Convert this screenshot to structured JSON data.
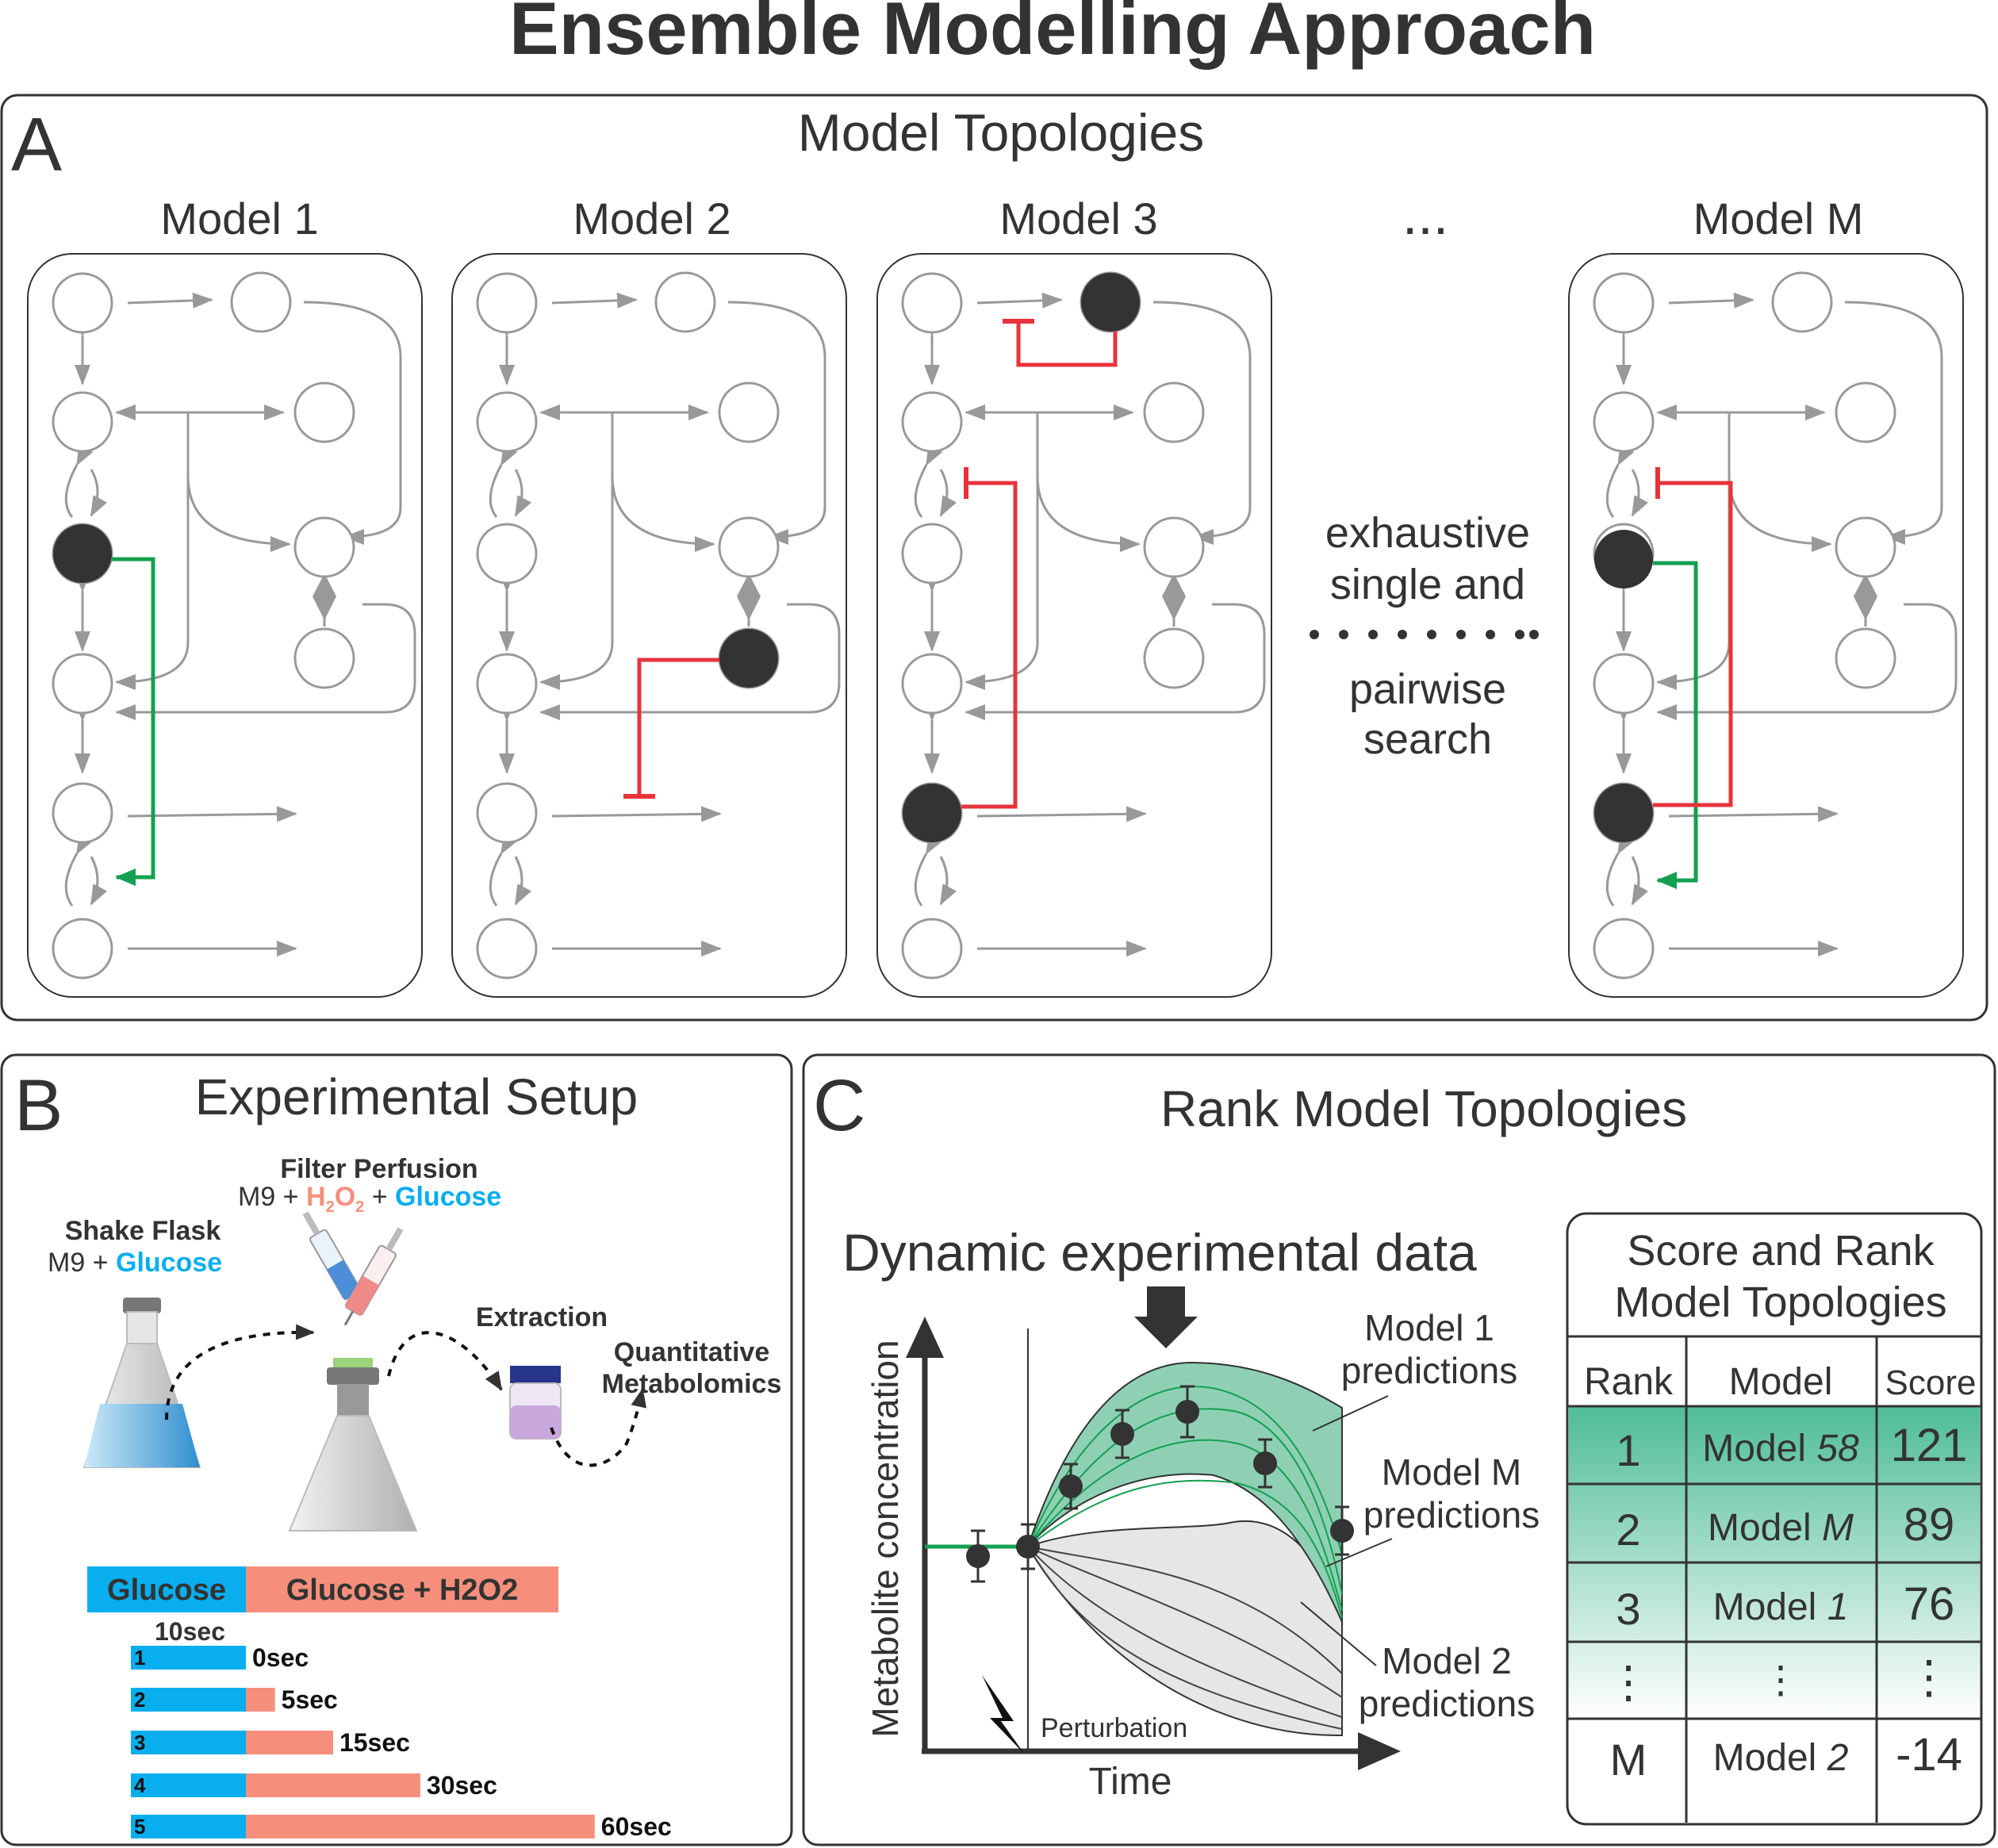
{
  "title": "Ensemble Modelling Approach",
  "colors": {
    "dark": "#333333",
    "grey": "#999999",
    "red": "#e8333b",
    "green": "#14a050",
    "blue": "#09aeee",
    "salmon": "#f58f7c",
    "teal": "#44b890"
  },
  "panelA": {
    "letter": "A",
    "heading": "Model Topologies",
    "models": [
      "Model 1",
      "Model 2",
      "Model 3",
      "Model M"
    ],
    "ellipsis": "...",
    "search_text": [
      "exhaustive",
      "single and",
      "pairwise",
      "search"
    ]
  },
  "panelB": {
    "letter": "B",
    "heading": "Experimental Setup",
    "filter_perfusion": "Filter Perfusion",
    "filter_media": {
      "m9": "M9 +",
      "h": "H",
      "sub2a": "2",
      "o": "O",
      "sub2b": "2",
      "plus": "+",
      "glucose": "Glucose"
    },
    "shake_flask": "Shake Flask",
    "shake_media": {
      "m9": "M9 +",
      "glucose": "Glucose"
    },
    "extraction": "Extraction",
    "quant1": "Quantitative",
    "quant2": "Metabolomics",
    "bar_glucose": "Glucose",
    "bar_glucose_h2o2": "Glucose + H2O2",
    "bar_10sec": "10sec",
    "timepoints": [
      {
        "id": "1",
        "label": "0sec",
        "seconds": 0
      },
      {
        "id": "2",
        "label": "5sec",
        "seconds": 5
      },
      {
        "id": "3",
        "label": "15sec",
        "seconds": 15
      },
      {
        "id": "4",
        "label": "30sec",
        "seconds": 30
      },
      {
        "id": "5",
        "label": "60sec",
        "seconds": 60
      }
    ]
  },
  "panelC": {
    "letter": "C",
    "heading": "Rank Model Topologies",
    "dyn_title": "Dynamic experimental data",
    "ylabel": "Metabolite concentration",
    "xlabel": "Time",
    "perturbation": "Perturbation",
    "pred1": [
      "Model 1",
      "predictions"
    ],
    "predM": [
      "Model M",
      "predictions"
    ],
    "pred2": [
      "Model 2",
      "predictions"
    ],
    "table_title": [
      "Score and Rank",
      "Model Topologies"
    ],
    "table_headers": [
      "Rank",
      "Model",
      "Score"
    ],
    "table_rows": [
      {
        "rank": "1",
        "model": "Model ",
        "model_it": "58",
        "score": "121"
      },
      {
        "rank": "2",
        "model": "Model ",
        "model_it": "M",
        "score": "89"
      },
      {
        "rank": "3",
        "model": "Model ",
        "model_it": "1",
        "score": "76"
      },
      {
        "rank": "⋮",
        "model": "⋮",
        "model_it": "",
        "score": "⋮"
      },
      {
        "rank": "M",
        "model": "Model ",
        "model_it": "2",
        "score": "-14"
      }
    ]
  }
}
